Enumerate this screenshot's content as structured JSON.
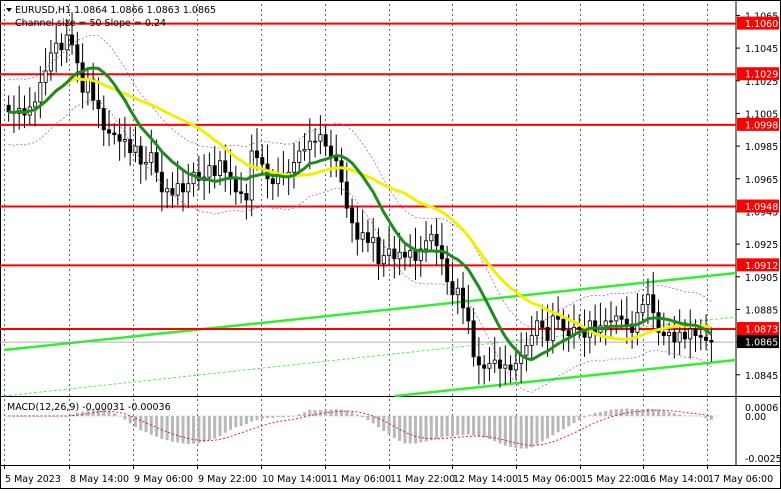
{
  "header": {
    "symbol_line": "EURUSD,H1  1.0864 1.0866 1.0863 1.0865",
    "indicator_line": "Channel size = 50 Slope = 0.24"
  },
  "macd": {
    "label": "MACD(12,26,9) -0.00031 -0.00036"
  },
  "chart_data": {
    "type": "candlestick",
    "symbol": "EURUSD",
    "timeframe": "H1",
    "ohlc_last": {
      "open": 1.0864,
      "high": 1.0866,
      "low": 1.0863,
      "close": 1.0865
    },
    "ylim": [
      1.0832,
      1.0072
    ],
    "price_ticks": [
      "1.1065",
      "1.1045",
      "1.1025",
      "1.1005",
      "1.0985",
      "1.0965",
      "1.0945",
      "1.0925",
      "1.0905",
      "1.0885",
      "1.0865",
      "1.0845"
    ],
    "price_tick_values": [
      1.1065,
      1.1045,
      1.1025,
      1.1005,
      1.0985,
      1.0965,
      1.0945,
      1.0925,
      1.0905,
      1.0885,
      1.0865,
      1.0845
    ],
    "x_ticks": [
      "5 May 2023",
      "8 May 14:00",
      "9 May 06:00",
      "9 May 22:00",
      "10 May 14:00",
      "11 May 06:00",
      "11 May 22:00",
      "12 May 14:00",
      "15 May 06:00",
      "15 May 22:00",
      "16 May 14:00",
      "17 May 06:00"
    ],
    "horizontal_levels": [
      {
        "label": "1.1060",
        "value": 1.106
      },
      {
        "label": "1.1029",
        "value": 1.1029
      },
      {
        "label": "1.0998",
        "value": 1.0998
      },
      {
        "label": "1.0948",
        "value": 1.0948
      },
      {
        "label": "1.0912",
        "value": 1.0912
      },
      {
        "label": "1.0873",
        "value": 1.0873
      }
    ],
    "current_price_label": "1.0865",
    "current_price": 1.0865,
    "series_closes": [
      1.1006,
      1.1005,
      1.1008,
      1.1004,
      1.1009,
      1.1012,
      1.1024,
      1.1031,
      1.1042,
      1.1048,
      1.1044,
      1.1053,
      1.1047,
      1.1036,
      1.1018,
      1.1026,
      1.1013,
      1.1008,
      1.0995,
      1.0993,
      1.0992,
      1.0988,
      1.0989,
      1.0981,
      1.0985,
      1.0974,
      1.0975,
      1.0981,
      1.0969,
      1.0957,
      1.0959,
      1.0955,
      1.0962,
      1.0957,
      1.0962,
      1.0969,
      1.0964,
      1.0966,
      1.0973,
      1.0967,
      1.0976,
      1.0969,
      1.0965,
      1.0957,
      1.0956,
      1.0952,
      1.0982,
      1.0978,
      1.0974,
      1.0965,
      1.0962,
      1.0968,
      1.0967,
      1.0969,
      1.0975,
      1.0982,
      1.0983,
      1.0988,
      1.0988,
      1.0992,
      1.0985,
      1.0978,
      1.0976,
      1.0963,
      1.0947,
      1.0938,
      1.0928,
      1.0932,
      1.0926,
      1.0929,
      1.0913,
      1.0918,
      1.0922,
      1.0916,
      1.092,
      1.0917,
      1.0921,
      1.0915,
      1.0922,
      1.0927,
      1.0931,
      1.0924,
      1.0916,
      1.0902,
      1.0894,
      1.0898,
      1.0886,
      1.0878,
      1.0856,
      1.0851,
      1.0849,
      1.0852,
      1.0854,
      1.0849,
      1.0851,
      1.0848,
      1.0852,
      1.0857,
      1.0863,
      1.0869,
      1.0878,
      1.0874,
      1.0866,
      1.0881,
      1.0879,
      1.0872,
      1.0869,
      1.0874,
      1.0873,
      1.0868,
      1.0878,
      1.0871,
      1.0875,
      1.0878,
      1.0878,
      1.0881,
      1.0879,
      1.0876,
      1.0871,
      1.0883,
      1.0888,
      1.0894,
      1.0883,
      1.0871,
      1.0869,
      1.0871,
      1.0865,
      1.0871,
      1.0867,
      1.0873,
      1.0869,
      1.0868,
      1.0866,
      1.0865
    ],
    "series": [
      {
        "name": "MA slow (yellow)",
        "color": "#f0f000"
      },
      {
        "name": "MA fast (green)",
        "color": "#1f8a1f"
      }
    ],
    "colors": {
      "levels": "#ff0000",
      "channel": "#33ee33",
      "bull_body": "#ffffff",
      "bear_body": "#000000"
    }
  }
}
